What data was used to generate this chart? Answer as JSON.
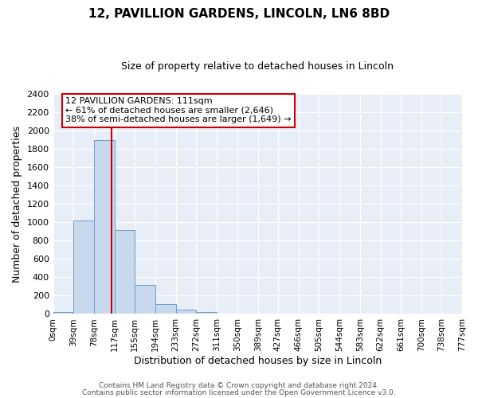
{
  "title": "12, PAVILLION GARDENS, LINCOLN, LN6 8BD",
  "subtitle": "Size of property relative to detached houses in Lincoln",
  "xlabel": "Distribution of detached houses by size in Lincoln",
  "ylabel": "Number of detached properties",
  "bar_color": "#c8d9ee",
  "bar_edge_color": "#6b9ec8",
  "background_color": "#e8eef8",
  "bin_edges": [
    0,
    39,
    78,
    117,
    155,
    194,
    233,
    272,
    311,
    350,
    389,
    427,
    466,
    505,
    544,
    583,
    622,
    661,
    700,
    738,
    777
  ],
  "bin_labels": [
    "0sqm",
    "39sqm",
    "78sqm",
    "117sqm",
    "155sqm",
    "194sqm",
    "233sqm",
    "272sqm",
    "311sqm",
    "350sqm",
    "389sqm",
    "427sqm",
    "466sqm",
    "505sqm",
    "544sqm",
    "583sqm",
    "622sqm",
    "661sqm",
    "700sqm",
    "738sqm",
    "777sqm"
  ],
  "bar_heights": [
    20,
    1020,
    1900,
    920,
    315,
    110,
    50,
    20,
    0,
    0,
    0,
    0,
    0,
    0,
    0,
    0,
    0,
    0,
    0,
    0
  ],
  "vline_x": 111,
  "vline_color": "#cc0000",
  "ylim": [
    0,
    2400
  ],
  "yticks": [
    0,
    200,
    400,
    600,
    800,
    1000,
    1200,
    1400,
    1600,
    1800,
    2000,
    2200,
    2400
  ],
  "annotation_title": "12 PAVILLION GARDENS: 111sqm",
  "annotation_line1": "← 61% of detached houses are smaller (2,646)",
  "annotation_line2": "38% of semi-detached houses are larger (1,649) →",
  "footer1": "Contains HM Land Registry data © Crown copyright and database right 2024.",
  "footer2": "Contains public sector information licensed under the Open Government Licence v3.0."
}
